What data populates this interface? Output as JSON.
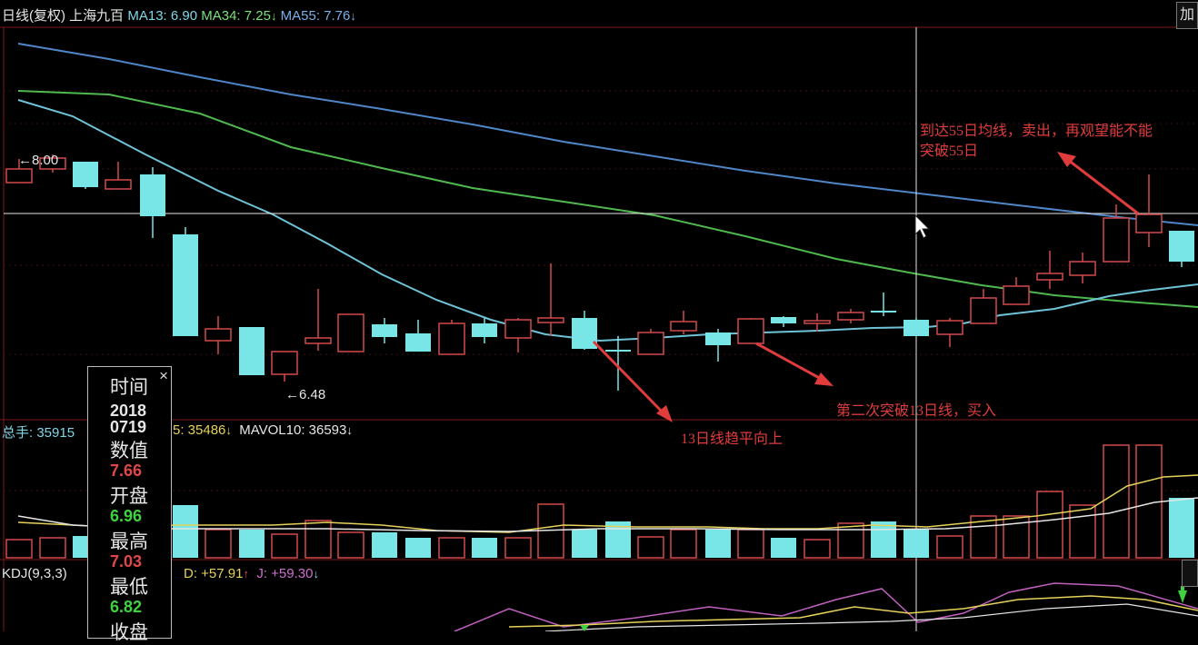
{
  "header": {
    "period": "日线(复权)",
    "stock_name": "上海九百",
    "ma13_label": "MA13: 6.90",
    "ma34_label": "MA34: 7.25",
    "ma55_label": "MA55: 7.76",
    "down_arrow": "↓",
    "add_button": "加"
  },
  "price_panel": {
    "high_marker": "8.00",
    "low_marker": "6.48",
    "high_arrow": "←",
    "low_arrow": "←"
  },
  "volume_panel": {
    "label_prefix": "总手: 35915",
    "mavol5": "5: 35486",
    "mavol10": "MAVOL10: 36593"
  },
  "kdj_panel": {
    "label": "KDJ(9,3,3)",
    "d_value": "D: +57.91",
    "d_arrow": "↑",
    "j_value": "J: +59.30",
    "j_arrow": "↓"
  },
  "annotations": {
    "sell_note_line1": "到达55日均线，卖出，再观望能不能",
    "sell_note_line2": "突破55日",
    "buy_note": "第二次突破13日线，买入",
    "flatten_note": "13日线趋平向上"
  },
  "info_box": {
    "close_icon": "×",
    "time_label": "时间",
    "year": "2018",
    "date": "0719",
    "value_label": "数值",
    "value": "7.66",
    "open_label": "开盘",
    "open": "6.96",
    "high_label": "最高",
    "high": "7.03",
    "low_label": "最低",
    "low": "6.82",
    "close_label": "收盘"
  },
  "colors": {
    "up": "#d24a4a",
    "down": "#78e6e6",
    "ma13": "#7fd8e8",
    "ma34": "#4fb84f",
    "ma55": "#4f86c8",
    "annotation": "#e03c3c"
  }
}
